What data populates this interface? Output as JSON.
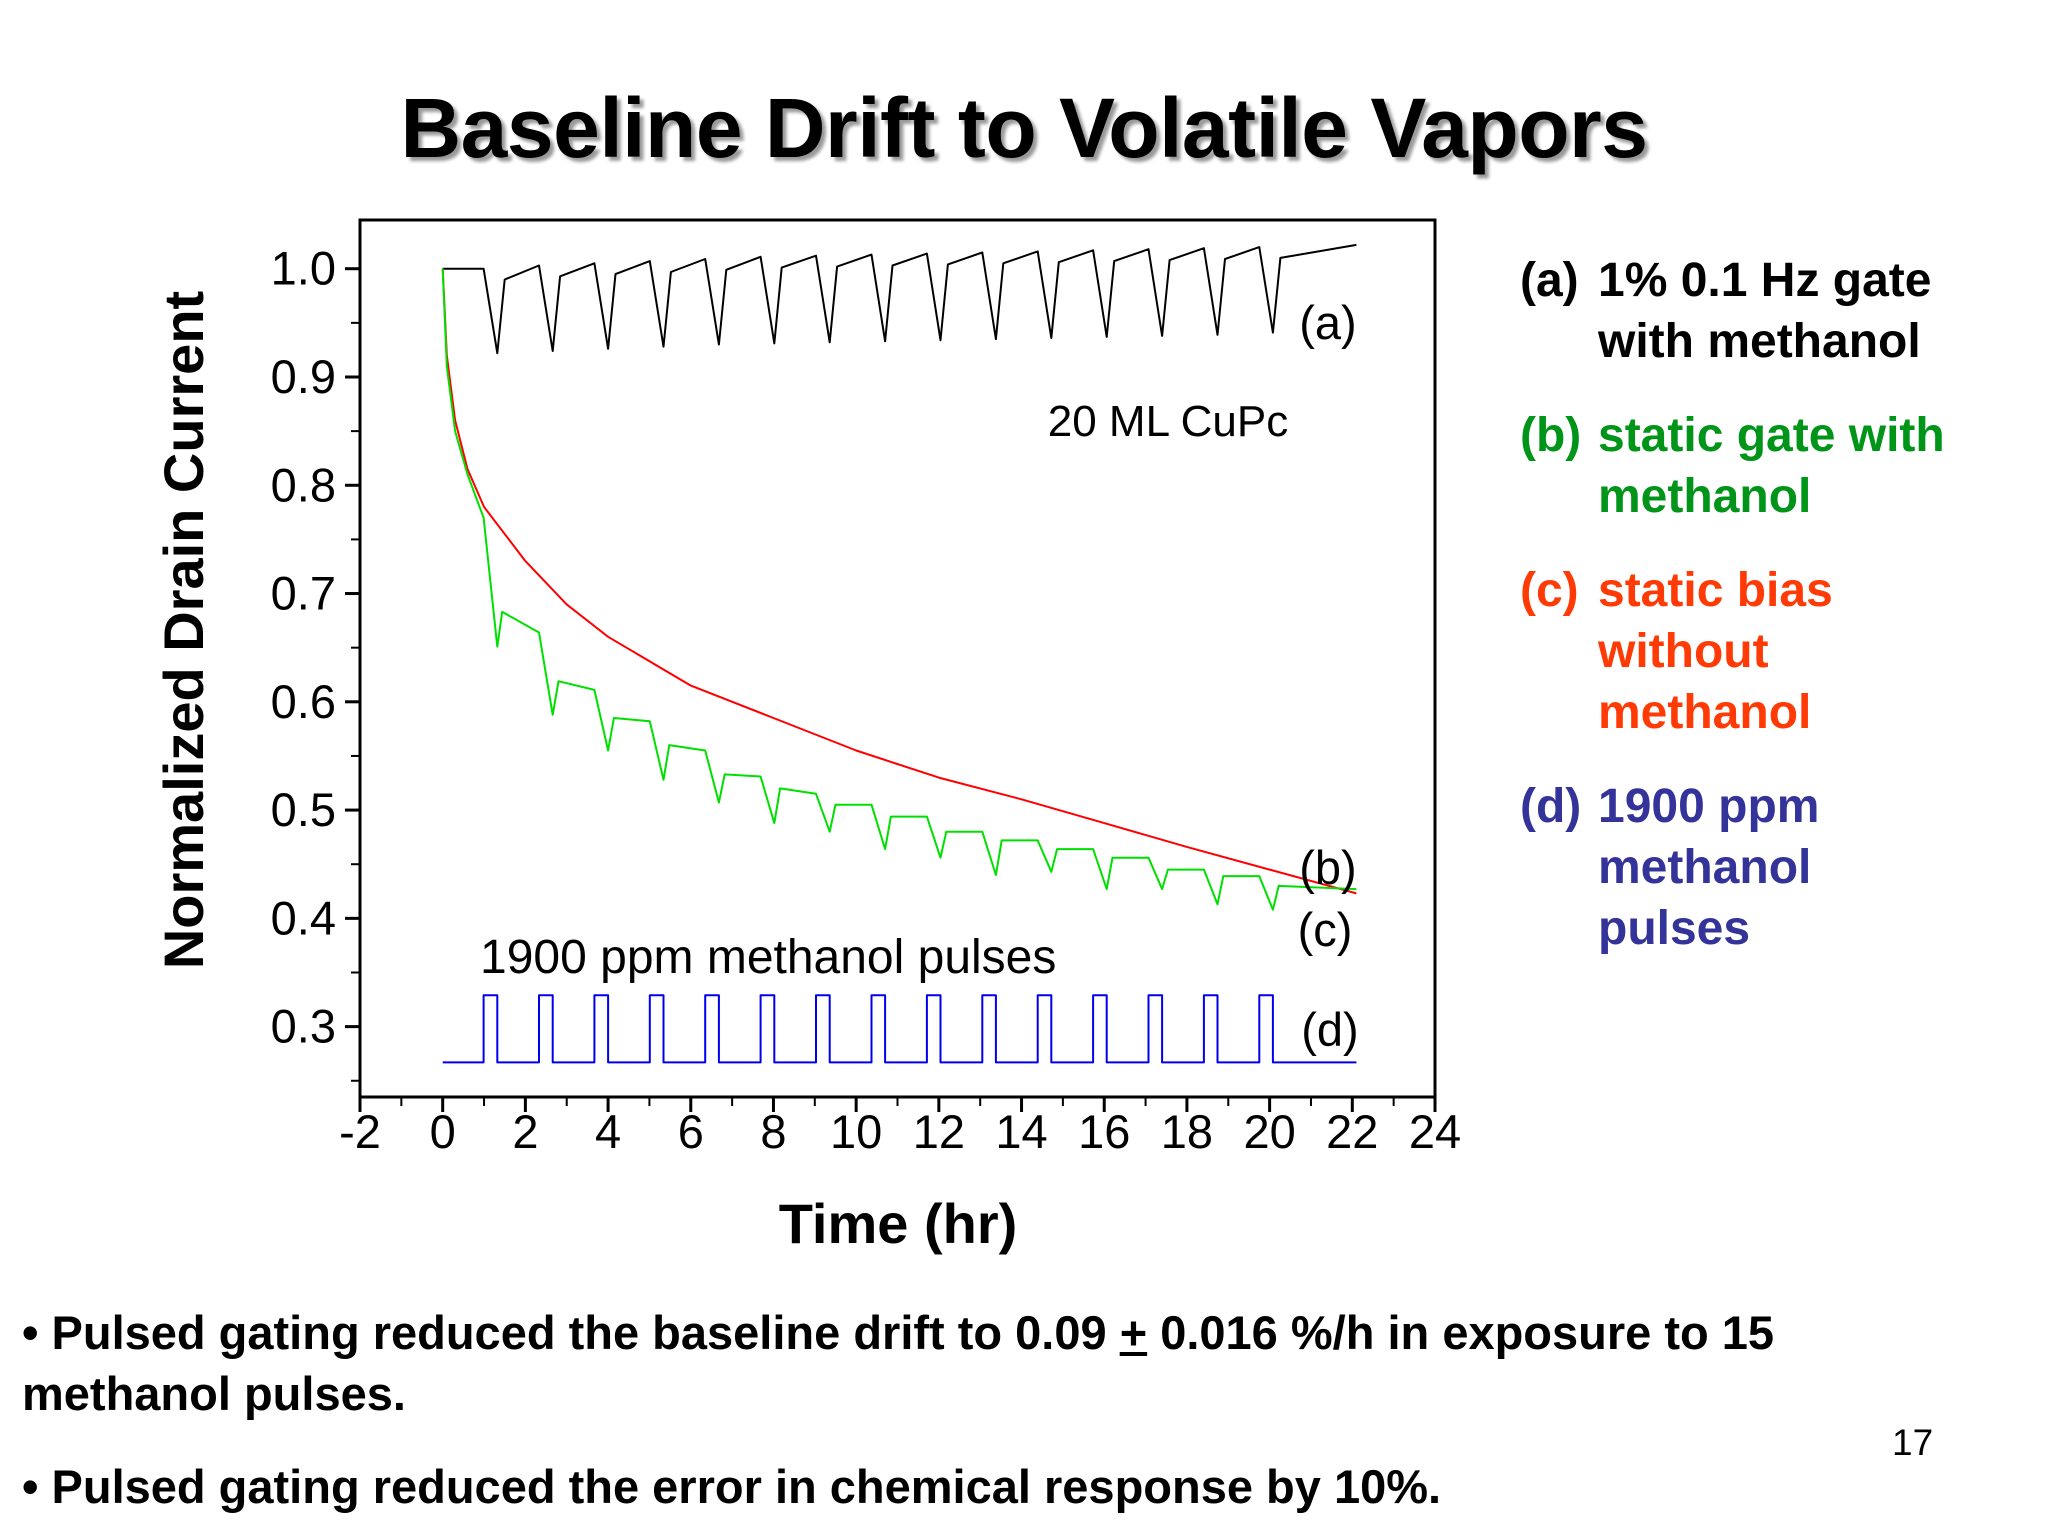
{
  "title": "Baseline Drift to Volatile Vapors",
  "chart_data": {
    "type": "line",
    "xlabel": "Time (hr)",
    "ylabel": "Normalized Drain Current",
    "xlim": [
      -2,
      24
    ],
    "ylim": [
      0.235,
      1.045
    ],
    "xticks": [
      "-2",
      "0",
      "2",
      "4",
      "6",
      "8",
      "10",
      "12",
      "14",
      "16",
      "18",
      "20",
      "22",
      "24"
    ],
    "yticks": [
      "0.3",
      "0.4",
      "0.5",
      "0.6",
      "0.7",
      "0.8",
      "0.9",
      "1.0"
    ],
    "grid": false,
    "annotations": {
      "a": "(a)",
      "b": "(b)",
      "c": "(c)",
      "d": "(d)",
      "sample": "20 ML CuPc",
      "pulses": "1900 ppm methanol pulses"
    },
    "series": [
      {
        "key": "a",
        "color": "#000000",
        "points": [
          [
            0,
            1.0
          ],
          [
            0.99,
            1.0
          ],
          [
            1.32,
            0.922
          ],
          [
            1.5,
            0.99
          ],
          [
            2.33,
            1.003
          ],
          [
            2.66,
            0.924
          ],
          [
            2.84,
            0.993
          ],
          [
            3.67,
            1.005
          ],
          [
            4.0,
            0.926
          ],
          [
            4.18,
            0.995
          ],
          [
            5.01,
            1.007
          ],
          [
            5.34,
            0.928
          ],
          [
            5.52,
            0.997
          ],
          [
            6.35,
            1.009
          ],
          [
            6.68,
            0.93
          ],
          [
            6.86,
            0.999
          ],
          [
            7.69,
            1.011
          ],
          [
            8.02,
            0.931
          ],
          [
            8.2,
            1.001
          ],
          [
            9.03,
            1.012
          ],
          [
            9.36,
            0.932
          ],
          [
            9.54,
            1.002
          ],
          [
            10.37,
            1.013
          ],
          [
            10.7,
            0.933
          ],
          [
            10.88,
            1.003
          ],
          [
            11.71,
            1.014
          ],
          [
            12.04,
            0.934
          ],
          [
            12.22,
            1.004
          ],
          [
            13.05,
            1.015
          ],
          [
            13.38,
            0.935
          ],
          [
            13.56,
            1.005
          ],
          [
            14.39,
            1.016
          ],
          [
            14.72,
            0.936
          ],
          [
            14.9,
            1.006
          ],
          [
            15.73,
            1.017
          ],
          [
            16.06,
            0.937
          ],
          [
            16.24,
            1.007
          ],
          [
            17.07,
            1.018
          ],
          [
            17.4,
            0.938
          ],
          [
            17.58,
            1.008
          ],
          [
            18.41,
            1.019
          ],
          [
            18.74,
            0.939
          ],
          [
            18.92,
            1.009
          ],
          [
            19.75,
            1.02
          ],
          [
            20.08,
            0.941
          ],
          [
            20.26,
            1.01
          ],
          [
            22.1,
            1.022
          ]
        ]
      },
      {
        "key": "c",
        "color": "#ff0000",
        "points": [
          [
            0,
            1.0
          ],
          [
            0.1,
            0.92
          ],
          [
            0.3,
            0.86
          ],
          [
            0.6,
            0.815
          ],
          [
            1,
            0.78
          ],
          [
            2,
            0.73
          ],
          [
            3,
            0.69
          ],
          [
            4,
            0.66
          ],
          [
            6,
            0.615
          ],
          [
            8,
            0.585
          ],
          [
            10,
            0.555
          ],
          [
            12,
            0.53
          ],
          [
            14,
            0.51
          ],
          [
            16,
            0.488
          ],
          [
            18,
            0.466
          ],
          [
            20,
            0.445
          ],
          [
            22.1,
            0.423
          ]
        ]
      },
      {
        "key": "b",
        "color": "#00e000",
        "points": [
          [
            0,
            1.0
          ],
          [
            0.1,
            0.91
          ],
          [
            0.3,
            0.85
          ],
          [
            0.6,
            0.81
          ],
          [
            0.99,
            0.77
          ],
          [
            1.32,
            0.651
          ],
          [
            1.44,
            0.683
          ],
          [
            2.33,
            0.664
          ],
          [
            2.66,
            0.588
          ],
          [
            2.8,
            0.619
          ],
          [
            3.67,
            0.611
          ],
          [
            4.0,
            0.555
          ],
          [
            4.14,
            0.585
          ],
          [
            5.01,
            0.582
          ],
          [
            5.34,
            0.528
          ],
          [
            5.48,
            0.56
          ],
          [
            6.35,
            0.555
          ],
          [
            6.68,
            0.507
          ],
          [
            6.82,
            0.533
          ],
          [
            7.69,
            0.531
          ],
          [
            8.02,
            0.488
          ],
          [
            8.16,
            0.52
          ],
          [
            9.03,
            0.515
          ],
          [
            9.36,
            0.48
          ],
          [
            9.5,
            0.505
          ],
          [
            10.37,
            0.505
          ],
          [
            10.7,
            0.464
          ],
          [
            10.84,
            0.494
          ],
          [
            11.71,
            0.494
          ],
          [
            12.04,
            0.456
          ],
          [
            12.18,
            0.48
          ],
          [
            13.05,
            0.48
          ],
          [
            13.38,
            0.44
          ],
          [
            13.52,
            0.472
          ],
          [
            14.39,
            0.472
          ],
          [
            14.72,
            0.443
          ],
          [
            14.86,
            0.464
          ],
          [
            15.73,
            0.464
          ],
          [
            16.06,
            0.427
          ],
          [
            16.2,
            0.456
          ],
          [
            17.07,
            0.456
          ],
          [
            17.4,
            0.427
          ],
          [
            17.54,
            0.445
          ],
          [
            18.41,
            0.445
          ],
          [
            18.74,
            0.413
          ],
          [
            18.88,
            0.439
          ],
          [
            19.75,
            0.439
          ],
          [
            20.08,
            0.408
          ],
          [
            20.22,
            0.43
          ],
          [
            22.1,
            0.427
          ]
        ]
      },
      {
        "key": "d",
        "color": "#0000ee",
        "points": [
          [
            0,
            0.267
          ],
          [
            0.99,
            0.267
          ],
          [
            0.99,
            0.329
          ],
          [
            1.32,
            0.329
          ],
          [
            1.32,
            0.267
          ],
          [
            2.33,
            0.267
          ],
          [
            2.33,
            0.329
          ],
          [
            2.66,
            0.329
          ],
          [
            2.66,
            0.267
          ],
          [
            3.67,
            0.267
          ],
          [
            3.67,
            0.329
          ],
          [
            4.0,
            0.329
          ],
          [
            4.0,
            0.267
          ],
          [
            5.01,
            0.267
          ],
          [
            5.01,
            0.329
          ],
          [
            5.34,
            0.329
          ],
          [
            5.34,
            0.267
          ],
          [
            6.35,
            0.267
          ],
          [
            6.35,
            0.329
          ],
          [
            6.68,
            0.329
          ],
          [
            6.68,
            0.267
          ],
          [
            7.69,
            0.267
          ],
          [
            7.69,
            0.329
          ],
          [
            8.02,
            0.329
          ],
          [
            8.02,
            0.267
          ],
          [
            9.03,
            0.267
          ],
          [
            9.03,
            0.329
          ],
          [
            9.36,
            0.329
          ],
          [
            9.36,
            0.267
          ],
          [
            10.37,
            0.267
          ],
          [
            10.37,
            0.329
          ],
          [
            10.7,
            0.329
          ],
          [
            10.7,
            0.267
          ],
          [
            11.71,
            0.267
          ],
          [
            11.71,
            0.329
          ],
          [
            12.04,
            0.329
          ],
          [
            12.04,
            0.267
          ],
          [
            13.05,
            0.267
          ],
          [
            13.05,
            0.329
          ],
          [
            13.38,
            0.329
          ],
          [
            13.38,
            0.267
          ],
          [
            14.39,
            0.267
          ],
          [
            14.39,
            0.329
          ],
          [
            14.72,
            0.329
          ],
          [
            14.72,
            0.267
          ],
          [
            15.73,
            0.267
          ],
          [
            15.73,
            0.329
          ],
          [
            16.06,
            0.329
          ],
          [
            16.06,
            0.267
          ],
          [
            17.07,
            0.267
          ],
          [
            17.07,
            0.329
          ],
          [
            17.4,
            0.329
          ],
          [
            17.4,
            0.267
          ],
          [
            18.41,
            0.267
          ],
          [
            18.41,
            0.329
          ],
          [
            18.74,
            0.329
          ],
          [
            18.74,
            0.267
          ],
          [
            19.75,
            0.267
          ],
          [
            19.75,
            0.329
          ],
          [
            20.08,
            0.329
          ],
          [
            20.08,
            0.267
          ],
          [
            22.1,
            0.267
          ]
        ]
      }
    ]
  },
  "legend": [
    {
      "tag": "(a)",
      "lines": [
        "1% 0.1 Hz gate",
        "with methanol"
      ],
      "color": "#000000"
    },
    {
      "tag": "(b)",
      "lines": [
        "static gate with",
        "methanol"
      ],
      "color": "#009419"
    },
    {
      "tag": "(c)",
      "lines": [
        "static bias",
        "without",
        "methanol"
      ],
      "color": "#ff3a05"
    },
    {
      "tag": "(d)",
      "lines": [
        "1900 ppm",
        "methanol",
        "pulses"
      ],
      "color": "#333399"
    }
  ],
  "bullets": [
    {
      "before": "• Pulsed gating reduced the baseline drift to 0.09 ",
      "pm": "+",
      "after": " 0.016 %/h in exposure to 15 methanol pulses."
    },
    {
      "before": "• Pulsed gating reduced the error in chemical response by 10%.",
      "pm": "",
      "after": ""
    }
  ],
  "page_number": "17"
}
